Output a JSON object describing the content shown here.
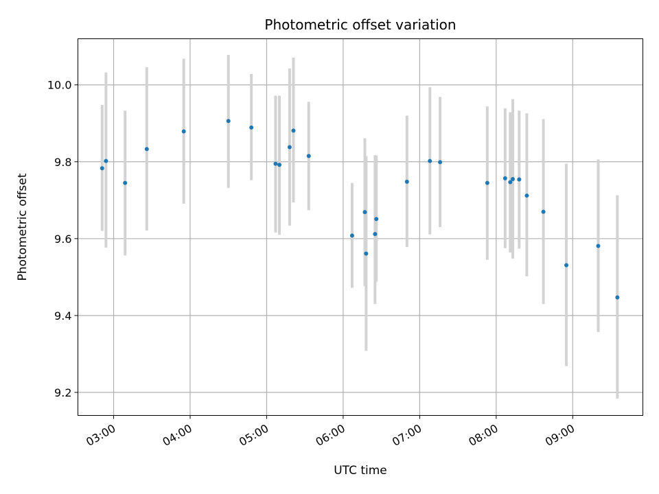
{
  "chart_data": {
    "type": "scatter",
    "title": "Photometric offset variation",
    "xlabel": "UTC time",
    "ylabel": "Photometric offset",
    "x_tick_labels": [
      "03:00",
      "04:00",
      "05:00",
      "06:00",
      "07:00",
      "08:00",
      "09:00"
    ],
    "y_tick_labels": [
      "9.2",
      "9.4",
      "9.6",
      "9.8",
      "10.0"
    ],
    "xlim": [
      "02:32",
      "09:55"
    ],
    "ylim": [
      9.14,
      10.12
    ],
    "grid": true,
    "points": [
      {
        "x": "02:51",
        "y": 9.783,
        "low": 9.62,
        "high": 9.948
      },
      {
        "x": "02:54",
        "y": 9.802,
        "low": 9.577,
        "high": 10.032
      },
      {
        "x": "03:09",
        "y": 9.745,
        "low": 9.556,
        "high": 9.933
      },
      {
        "x": "03:26",
        "y": 9.833,
        "low": 9.621,
        "high": 10.046
      },
      {
        "x": "03:55",
        "y": 9.879,
        "low": 9.691,
        "high": 10.068
      },
      {
        "x": "04:30",
        "y": 9.906,
        "low": 9.732,
        "high": 10.078
      },
      {
        "x": "04:48",
        "y": 9.889,
        "low": 9.752,
        "high": 10.028
      },
      {
        "x": "05:07",
        "y": 9.795,
        "low": 9.616,
        "high": 9.972
      },
      {
        "x": "05:10",
        "y": 9.792,
        "low": 9.61,
        "high": 9.972
      },
      {
        "x": "05:18",
        "y": 9.838,
        "low": 9.634,
        "high": 10.043
      },
      {
        "x": "05:21",
        "y": 9.881,
        "low": 9.694,
        "high": 10.071
      },
      {
        "x": "05:33",
        "y": 9.815,
        "low": 9.674,
        "high": 9.956
      },
      {
        "x": "06:07",
        "y": 9.608,
        "low": 9.472,
        "high": 9.745
      },
      {
        "x": "06:17",
        "y": 9.669,
        "low": 9.477,
        "high": 9.861
      },
      {
        "x": "06:18",
        "y": 9.561,
        "low": 9.308,
        "high": 9.815
      },
      {
        "x": "06:25",
        "y": 9.612,
        "low": 9.43,
        "high": 9.817
      },
      {
        "x": "06:26",
        "y": 9.651,
        "low": 9.488,
        "high": 9.816
      },
      {
        "x": "06:50",
        "y": 9.748,
        "low": 9.578,
        "high": 9.92
      },
      {
        "x": "07:08",
        "y": 9.802,
        "low": 9.611,
        "high": 9.994
      },
      {
        "x": "07:16",
        "y": 9.799,
        "low": 9.63,
        "high": 9.969
      },
      {
        "x": "07:53",
        "y": 9.745,
        "low": 9.545,
        "high": 9.944
      },
      {
        "x": "08:07",
        "y": 9.757,
        "low": 9.575,
        "high": 9.939
      },
      {
        "x": "08:11",
        "y": 9.747,
        "low": 9.564,
        "high": 9.929
      },
      {
        "x": "08:13",
        "y": 9.755,
        "low": 9.548,
        "high": 9.963
      },
      {
        "x": "08:18",
        "y": 9.754,
        "low": 9.574,
        "high": 9.933
      },
      {
        "x": "08:24",
        "y": 9.712,
        "low": 9.502,
        "high": 9.926
      },
      {
        "x": "08:37",
        "y": 9.67,
        "low": 9.43,
        "high": 9.911
      },
      {
        "x": "08:55",
        "y": 9.531,
        "low": 9.268,
        "high": 9.795
      },
      {
        "x": "09:20",
        "y": 9.581,
        "low": 9.357,
        "high": 9.806
      },
      {
        "x": "09:35",
        "y": 9.447,
        "low": 9.184,
        "high": 9.713
      }
    ],
    "colors": {
      "point": "#1f77b4",
      "errorbar": "#d3d3d3",
      "grid": "#b0b0b0"
    }
  }
}
